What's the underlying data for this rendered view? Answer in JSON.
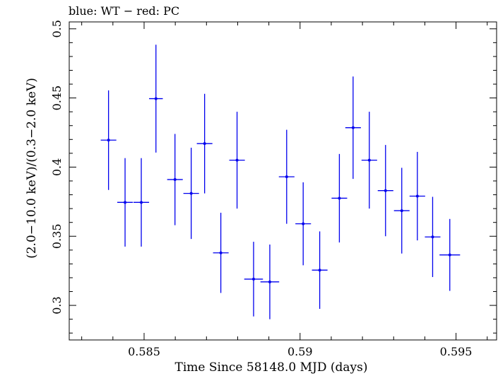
{
  "chart_data": {
    "type": "scatter",
    "title": "blue: WT − red: PC",
    "xlabel": "Time Since 58148.0 MJD (days)",
    "ylabel": "(2.0−10.0 keV)/(0.3−2.0 keV)",
    "xlim": [
      0.5826,
      0.5963
    ],
    "ylim": [
      0.275,
      0.505
    ],
    "xticks": [
      0.585,
      0.59,
      0.595
    ],
    "xtick_labels": [
      "0.585",
      "0.59",
      "0.595"
    ],
    "yticks": [
      0.3,
      0.35,
      0.4,
      0.45,
      0.5
    ],
    "ytick_labels": [
      "0.3",
      "0.35",
      "0.4",
      "0.45",
      "0.5"
    ],
    "series": [
      {
        "name": "WT",
        "color": "#0000ee",
        "points": [
          {
            "x": 0.58386,
            "xerr": 0.00025,
            "y": 0.4195,
            "yerr": 0.036
          },
          {
            "x": 0.58439,
            "xerr": 0.00025,
            "y": 0.3745,
            "yerr": 0.032
          },
          {
            "x": 0.58491,
            "xerr": 0.00025,
            "y": 0.3745,
            "yerr": 0.032
          },
          {
            "x": 0.58538,
            "xerr": 0.00022,
            "y": 0.4495,
            "yerr": 0.039
          },
          {
            "x": 0.58599,
            "xerr": 0.00025,
            "y": 0.391,
            "yerr": 0.033
          },
          {
            "x": 0.58651,
            "xerr": 0.00025,
            "y": 0.381,
            "yerr": 0.033
          },
          {
            "x": 0.58694,
            "xerr": 0.00025,
            "y": 0.417,
            "yerr": 0.036
          },
          {
            "x": 0.58746,
            "xerr": 0.00025,
            "y": 0.338,
            "yerr": 0.029
          },
          {
            "x": 0.58798,
            "xerr": 0.00025,
            "y": 0.405,
            "yerr": 0.035
          },
          {
            "x": 0.58851,
            "xerr": 0.0003,
            "y": 0.319,
            "yerr": 0.027
          },
          {
            "x": 0.58903,
            "xerr": 0.0003,
            "y": 0.317,
            "yerr": 0.027
          },
          {
            "x": 0.58957,
            "xerr": 0.00025,
            "y": 0.393,
            "yerr": 0.034
          },
          {
            "x": 0.5901,
            "xerr": 0.00025,
            "y": 0.359,
            "yerr": 0.03
          },
          {
            "x": 0.59063,
            "xerr": 0.00025,
            "y": 0.3255,
            "yerr": 0.028
          },
          {
            "x": 0.59126,
            "xerr": 0.00025,
            "y": 0.3775,
            "yerr": 0.032
          },
          {
            "x": 0.5917,
            "xerr": 0.00025,
            "y": 0.4285,
            "yerr": 0.037
          },
          {
            "x": 0.59222,
            "xerr": 0.00025,
            "y": 0.405,
            "yerr": 0.035
          },
          {
            "x": 0.59274,
            "xerr": 0.00025,
            "y": 0.383,
            "yerr": 0.033
          },
          {
            "x": 0.59326,
            "xerr": 0.00025,
            "y": 0.3685,
            "yerr": 0.031
          },
          {
            "x": 0.59376,
            "xerr": 0.00025,
            "y": 0.379,
            "yerr": 0.032
          },
          {
            "x": 0.59425,
            "xerr": 0.00025,
            "y": 0.3495,
            "yerr": 0.029
          },
          {
            "x": 0.5948,
            "xerr": 0.00033,
            "y": 0.3365,
            "yerr": 0.026
          }
        ]
      }
    ]
  }
}
